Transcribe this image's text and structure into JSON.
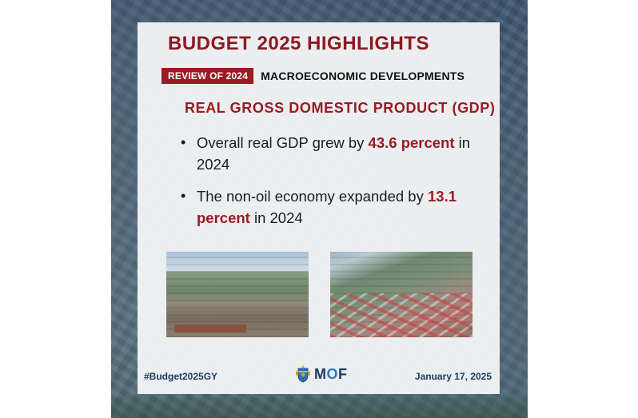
{
  "poster": {
    "headline": "BUDGET 2025 HIGHLIGHTS",
    "badge": "REVIEW OF 2024",
    "subhead": "MACROECONOMIC DEVELOPMENTS",
    "section_title": "REAL GROSS DOMESTIC PRODUCT (GDP)",
    "bullets": [
      {
        "before": "Overall real GDP grew by ",
        "highlight": "43.6 percent",
        "after": " in 2024"
      },
      {
        "before": "The non-oil economy expanded by ",
        "highlight": "13.1 percent",
        "after": " in 2024"
      }
    ],
    "bullet_glyph": "•",
    "footer": {
      "hashtag": "#Budget2025GY",
      "date": "January 17, 2025",
      "logo_text_m": "M",
      "logo_text_o": "O",
      "logo_text_f": "F"
    },
    "colors": {
      "accent_red": "#9a1b22",
      "headline_red": "#8c1a20",
      "navy": "#1f3b64"
    }
  }
}
